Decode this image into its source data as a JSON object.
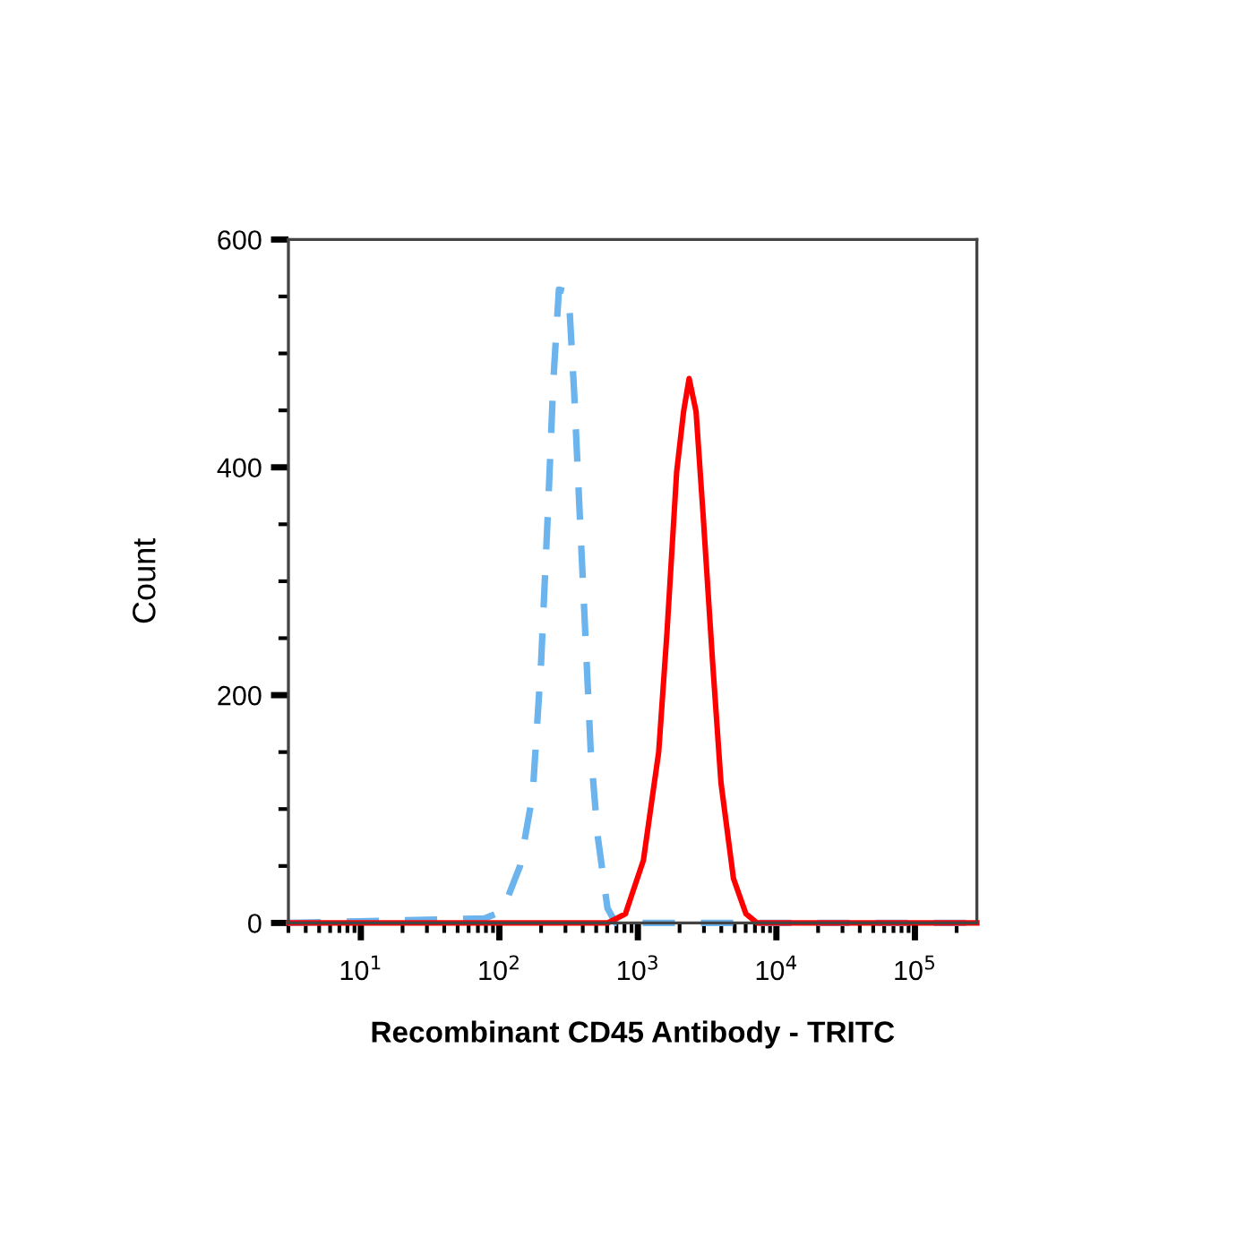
{
  "chart_data": {
    "type": "line",
    "xlabel": "Recombinant CD45 Antibody - TRITC",
    "ylabel": "Count",
    "log": "x",
    "xlim": [
      3,
      280000
    ],
    "xticks": [
      {
        "value": 10,
        "label": "10$^{1}$"
      },
      {
        "value": 100,
        "label": "10$^{2}$"
      },
      {
        "value": 1000,
        "label": "10$^{3}$"
      },
      {
        "value": 10000,
        "label": "10$^{4}$"
      },
      {
        "value": 100000,
        "label": "10$^{5}$"
      }
    ],
    "ylim": [
      0,
      600
    ],
    "yticks": [
      0,
      200,
      400,
      600
    ],
    "grid": false,
    "legend": false,
    "marker": "none",
    "series": [
      {
        "color": "#6cb4ee",
        "line_style": "dashed",
        "x": [
          3,
          78,
          105,
          141,
          174,
          200,
          224,
          245,
          269,
          316,
          347,
          380,
          417,
          457,
          513,
          603,
          692,
          280000
        ],
        "values": [
          0,
          4,
          10,
          50,
          113,
          228,
          360,
          475,
          556,
          554,
          465,
          360,
          255,
          150,
          76,
          13,
          0,
          0
        ]
      },
      {
        "color": "#ff0000",
        "line_style": "solid",
        "x": [
          3,
          603,
          813,
          1096,
          1413,
          1622,
          1905,
          2138,
          2344,
          2630,
          2951,
          3467,
          3981,
          4898,
          6026,
          7244,
          280000
        ],
        "values": [
          0,
          0,
          8,
          55,
          150,
          255,
          396,
          449,
          478,
          449,
          360,
          228,
          123,
          39,
          8,
          0,
          0
        ]
      }
    ]
  }
}
